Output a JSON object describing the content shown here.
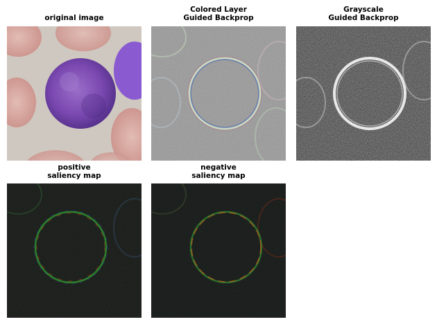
{
  "panels": [
    {
      "title": "original image"
    },
    {
      "title": "Colored Layer\nGuided Backprop"
    },
    {
      "title": "Grayscale\nGuided Backprop"
    },
    {
      "title": "positive\nsaliency map"
    },
    {
      "title": "negative\nsaliency map"
    }
  ],
  "colors": {
    "background": "#ffffff",
    "original_bg": "#c9c0b8",
    "rbc": "#d8a8a0",
    "cell_purple": "#7a48b0",
    "guided_gray": "#8e8e8e",
    "saliency_black": "#000000"
  }
}
